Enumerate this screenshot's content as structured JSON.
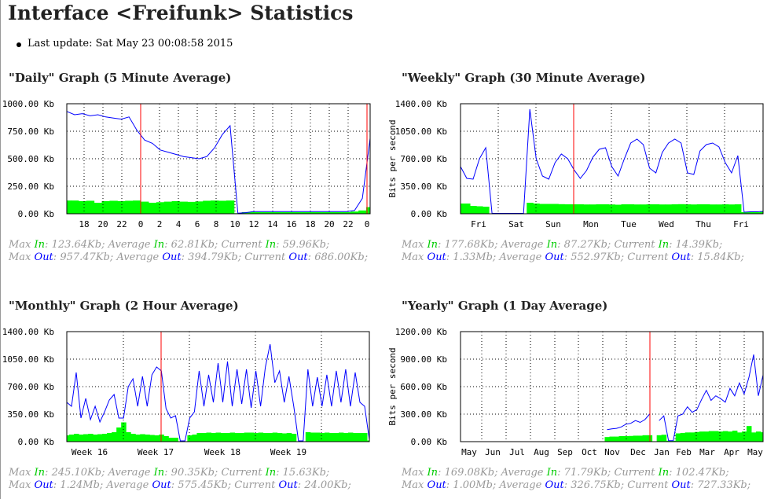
{
  "page": {
    "title": "Interface <Freifunk> Statistics",
    "last_update": "Last update: Sat May 23 00:08:58 2015"
  },
  "labels": {
    "max": "Max",
    "average": "Average",
    "current": "Current",
    "in": "In",
    "out": "Out"
  },
  "colors": {
    "in": "#00ff00",
    "out": "#0000ff",
    "marker": "#ff0000",
    "stats_text": "#999999"
  },
  "graphs": [
    {
      "heading": "\"Daily\" Graph (5 Minute Average)",
      "ylabel": "",
      "in": {
        "max": "123.64Kb",
        "avg": "62.81Kb",
        "cur": "59.96Kb"
      },
      "out": {
        "max": "957.47Kb",
        "avg": "394.79Kb",
        "cur": "686.00Kb"
      }
    },
    {
      "heading": "\"Weekly\" Graph (30 Minute Average)",
      "ylabel": "Bits per second",
      "in": {
        "max": "177.68Kb",
        "avg": "87.27Kb",
        "cur": "14.39Kb"
      },
      "out": {
        "max": "1.33Mb",
        "avg": "552.97Kb",
        "cur": "15.84Kb"
      }
    },
    {
      "heading": "\"Monthly\" Graph (2 Hour Average)",
      "ylabel": "",
      "in": {
        "max": "245.10Kb",
        "avg": "90.35Kb",
        "cur": "15.63Kb"
      },
      "out": {
        "max": "1.24Mb",
        "avg": "575.45Kb",
        "cur": "24.00Kb"
      }
    },
    {
      "heading": "\"Yearly\" Graph (1 Day Average)",
      "ylabel": "Bits per second",
      "in": {
        "max": "169.08Kb",
        "avg": "71.79Kb",
        "cur": "102.47Kb"
      },
      "out": {
        "max": "1.00Mb",
        "avg": "326.75Kb",
        "cur": "727.33Kb"
      }
    }
  ],
  "chart_data": [
    {
      "type": "area",
      "title": "\"Daily\" Graph (5 Minute Average)",
      "ylim": [
        0,
        1000
      ],
      "grid": true,
      "yticks": [
        "0.00 Kb",
        "250.00 Kb",
        "500.00 Kb",
        "750.00 Kb",
        "1000.00 Kb"
      ],
      "xticks": [
        "18",
        "20",
        "22",
        "0",
        "2",
        "4",
        "6",
        "8",
        "10",
        "12",
        "14",
        "16",
        "18",
        "20",
        "22",
        "0"
      ],
      "series": [
        {
          "name": "In",
          "values": [
            120,
            120,
            115,
            118,
            100,
            115,
            118,
            115,
            118,
            120,
            110,
            100,
            105,
            110,
            115,
            110,
            108,
            112,
            118,
            120,
            118,
            120,
            5,
            15,
            15,
            15,
            15,
            15,
            15,
            15,
            15,
            15,
            15,
            15,
            15,
            15,
            15,
            20,
            30,
            60
          ]
        },
        {
          "name": "Out",
          "values": [
            930,
            900,
            910,
            890,
            900,
            880,
            870,
            860,
            880,
            760,
            670,
            640,
            580,
            560,
            540,
            520,
            510,
            500,
            520,
            600,
            720,
            800,
            5,
            10,
            20,
            20,
            20,
            20,
            20,
            20,
            20,
            20,
            20,
            20,
            20,
            20,
            20,
            30,
            140,
            686
          ]
        }
      ]
    },
    {
      "type": "area",
      "title": "\"Weekly\" Graph (30 Minute Average)",
      "ylabel": "Bits per second",
      "ylim": [
        0,
        1400
      ],
      "grid": true,
      "yticks": [
        "0.00 Kb",
        "350.00 Kb",
        "700.00 Kb",
        "1050.00 Kb",
        "1400.00 Kb"
      ],
      "xticks": [
        "Fri",
        "Sat",
        "Sun",
        "Mon",
        "Tue",
        "Wed",
        "Thu",
        "Fri"
      ],
      "series": [
        {
          "name": "In",
          "values": [
            130,
            130,
            100,
            95,
            90,
            5,
            5,
            5,
            5,
            5,
            5,
            140,
            130,
            125,
            125,
            125,
            122,
            120,
            120,
            120,
            118,
            118,
            120,
            120,
            118,
            115,
            120,
            120,
            118,
            118,
            120,
            120,
            118,
            118,
            120,
            122,
            120,
            118,
            120,
            120,
            118,
            118,
            120,
            118,
            120,
            20,
            20,
            20,
            25
          ]
        },
        {
          "name": "Out",
          "values": [
            600,
            450,
            440,
            700,
            840,
            5,
            5,
            5,
            5,
            5,
            5,
            1330,
            700,
            480,
            440,
            650,
            760,
            700,
            560,
            450,
            550,
            720,
            820,
            840,
            600,
            480,
            700,
            900,
            950,
            880,
            580,
            520,
            780,
            900,
            950,
            900,
            520,
            500,
            800,
            880,
            900,
            850,
            650,
            520,
            740,
            20,
            25,
            25,
            30
          ]
        }
      ]
    },
    {
      "type": "area",
      "title": "\"Monthly\" Graph (2 Hour Average)",
      "ylim": [
        0,
        1400
      ],
      "grid": true,
      "yticks": [
        "0.00 Kb",
        "350.00 Kb",
        "700.00 Kb",
        "1050.00 Kb",
        "1400.00 Kb"
      ],
      "xticks": [
        "Week 16",
        "Week 17",
        "Week 18",
        "Week 19"
      ],
      "series": [
        {
          "name": "In",
          "values": [
            80,
            90,
            100,
            90,
            95,
            100,
            90,
            95,
            100,
            110,
            120,
            180,
            245,
            120,
            100,
            90,
            95,
            90,
            85,
            80,
            90,
            70,
            50,
            50,
            5,
            5,
            80,
            90,
            110,
            110,
            115,
            110,
            115,
            110,
            110,
            115,
            110,
            110,
            115,
            115,
            110,
            115,
            110,
            110,
            115,
            110,
            105,
            110,
            100,
            5,
            5,
            120,
            115,
            115,
            110,
            115,
            110,
            110,
            115,
            110,
            115,
            110,
            110,
            110,
            15
          ]
        },
        {
          "name": "Out",
          "values": [
            500,
            450,
            880,
            300,
            550,
            280,
            450,
            250,
            380,
            530,
            600,
            300,
            300,
            700,
            800,
            450,
            830,
            450,
            850,
            950,
            900,
            420,
            300,
            330,
            10,
            10,
            300,
            380,
            900,
            450,
            850,
            500,
            1000,
            500,
            1020,
            450,
            920,
            480,
            920,
            430,
            900,
            450,
            950,
            1240,
            750,
            900,
            500,
            830,
            450,
            10,
            10,
            920,
            450,
            820,
            450,
            850,
            450,
            900,
            500,
            920,
            450,
            880,
            500,
            450,
            24
          ]
        }
      ]
    },
    {
      "type": "area",
      "title": "\"Yearly\" Graph (1 Day Average)",
      "ylabel": "Bits per second",
      "ylim": [
        0,
        1200
      ],
      "grid": true,
      "yticks": [
        "0.00 Kb",
        "300.00 Kb",
        "600.00 Kb",
        "900.00 Kb",
        "1200.00 Kb"
      ],
      "xticks": [
        "May",
        "Jun",
        "Jul",
        "Aug",
        "Sep",
        "Oct",
        "Nov",
        "Dec",
        "Jan",
        "Feb",
        "Mar",
        "Apr",
        "May"
      ],
      "series": [
        {
          "name": "In",
          "values": [
            null,
            null,
            null,
            null,
            null,
            null,
            null,
            null,
            null,
            null,
            null,
            null,
            null,
            null,
            null,
            null,
            null,
            null,
            null,
            null,
            null,
            null,
            null,
            null,
            null,
            null,
            null,
            null,
            null,
            null,
            null,
            50,
            55,
            55,
            60,
            60,
            62,
            65,
            65,
            70,
            70,
            null,
            70,
            75,
            10,
            10,
            90,
            95,
            100,
            100,
            105,
            110,
            110,
            115,
            115,
            110,
            115,
            110,
            120,
            100,
            110,
            170,
            100,
            110,
            102
          ]
        },
        {
          "name": "Out",
          "values": [
            null,
            null,
            null,
            null,
            null,
            null,
            null,
            null,
            null,
            null,
            null,
            null,
            null,
            null,
            null,
            null,
            null,
            null,
            null,
            null,
            null,
            null,
            null,
            null,
            null,
            null,
            null,
            null,
            null,
            null,
            null,
            130,
            140,
            145,
            160,
            190,
            200,
            230,
            210,
            240,
            300,
            null,
            230,
            280,
            10,
            10,
            280,
            300,
            380,
            320,
            350,
            460,
            560,
            450,
            500,
            470,
            430,
            580,
            500,
            640,
            520,
            700,
            950,
            500,
            727
          ]
        }
      ]
    }
  ]
}
